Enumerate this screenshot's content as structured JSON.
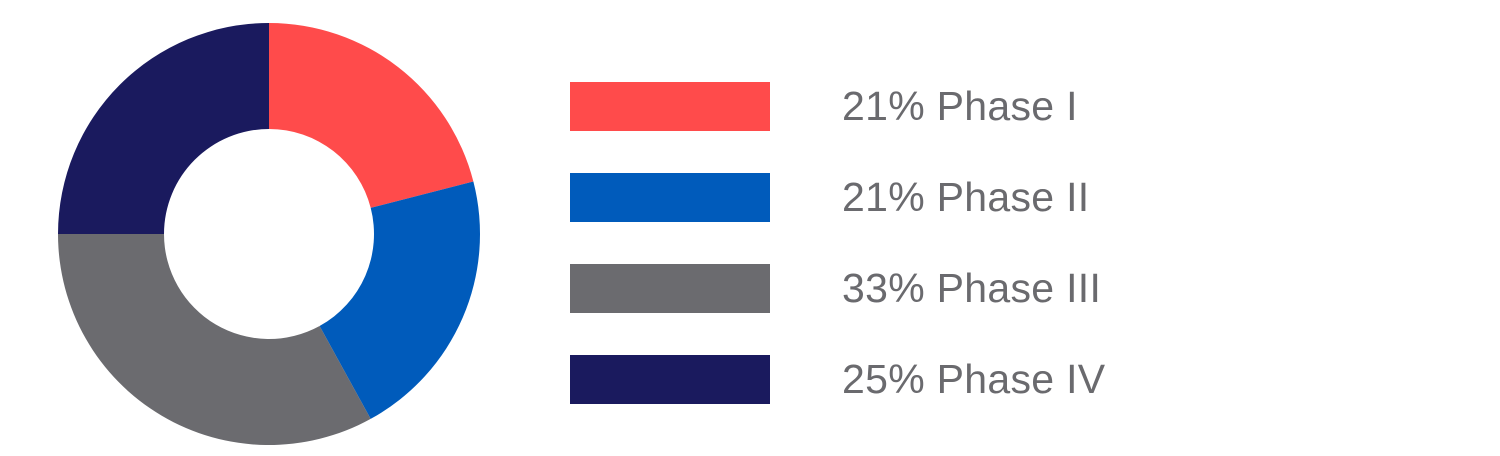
{
  "chart_data": {
    "type": "pie",
    "style": "donut",
    "series": [
      {
        "name": "Phase I",
        "value": 21,
        "label": "21% Phase I",
        "color": "#ff4b4b"
      },
      {
        "name": "Phase II",
        "value": 21,
        "label": "21% Phase II",
        "color": "#005bbb"
      },
      {
        "name": "Phase III",
        "value": 33,
        "label": "33% Phase III",
        "color": "#6b6b6f"
      },
      {
        "name": "Phase IV",
        "value": 25,
        "label": "25% Phase IV",
        "color": "#1a1a5e"
      }
    ],
    "start_angle": "12 o'clock",
    "direction": "clockwise",
    "legend_position": "right"
  }
}
